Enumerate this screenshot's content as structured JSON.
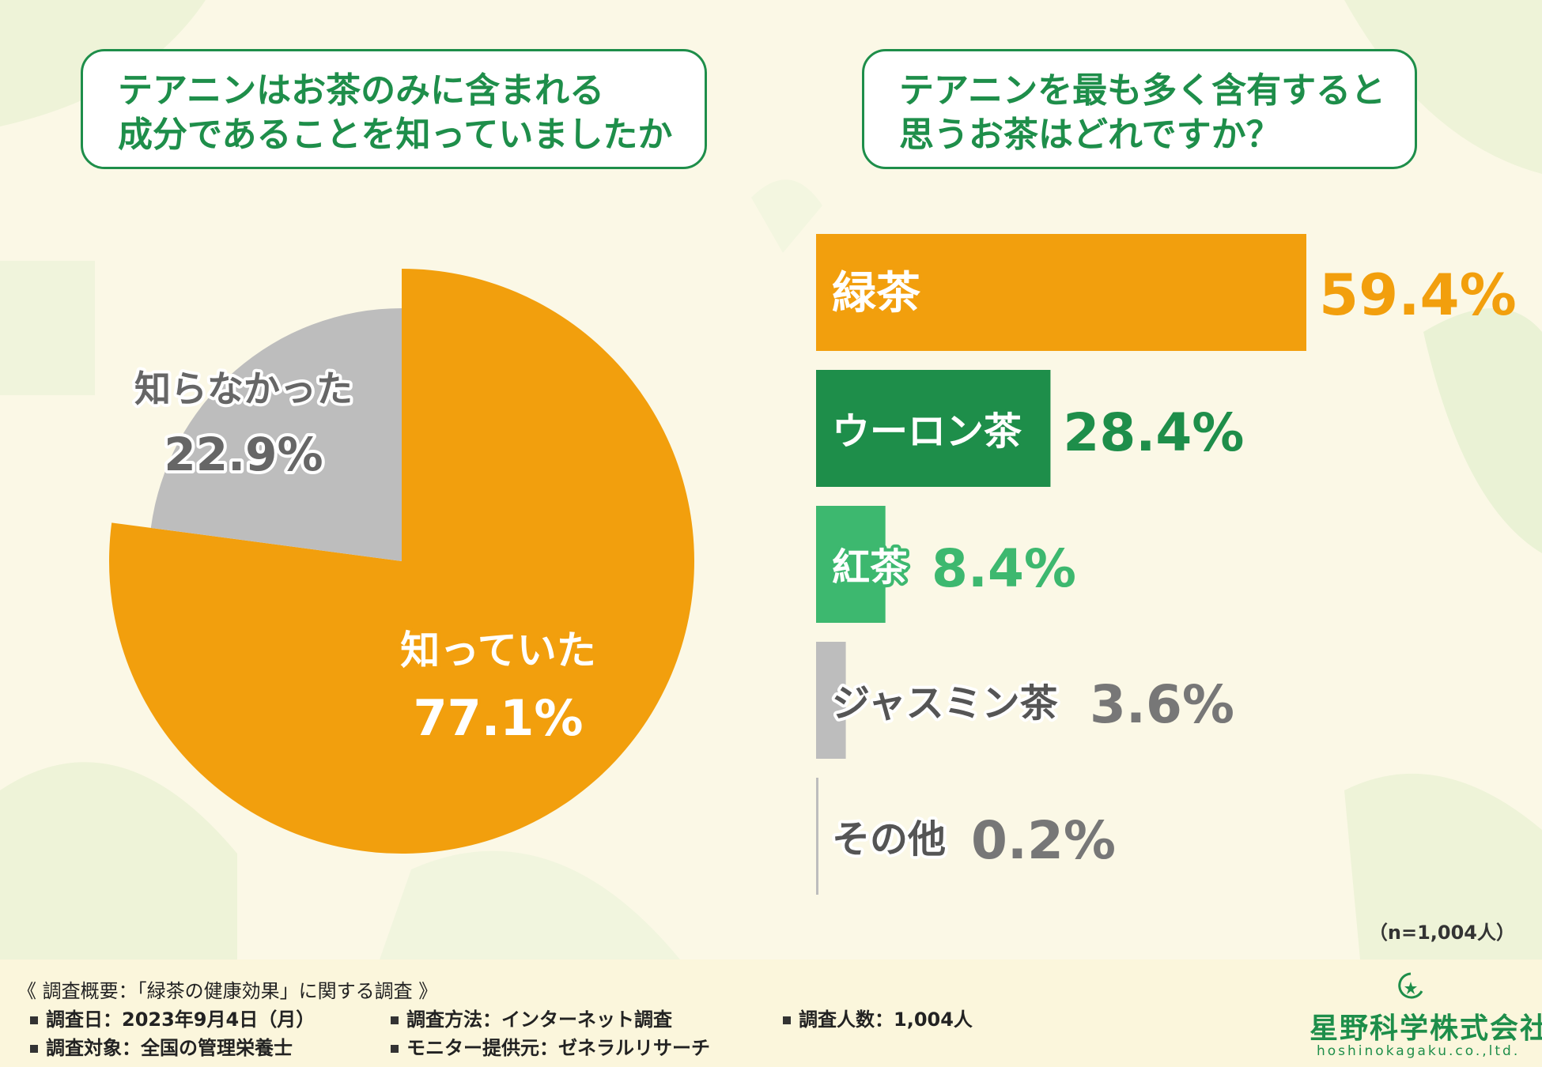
{
  "colors": {
    "green_dark": "#1e8e4a",
    "orange": "#f29f0d",
    "green_light": "#3db86f",
    "gray": "#bdbdbd",
    "gray_text": "#777777"
  },
  "questions": {
    "q1_line1": "テアニンはお茶のみに含まれる",
    "q1_line2": "成分であることを知っていましたか",
    "q2_line1": "テアニンを最も多く含有すると",
    "q2_line2": "思うお茶はどれですか？"
  },
  "chart_data": [
    {
      "type": "pie",
      "labels": [
        "知っていた",
        "知らなかった"
      ],
      "values": [
        77.1,
        22.9
      ],
      "value_labels": [
        "77.1%",
        "22.9%"
      ],
      "colors": [
        "#f29f0d",
        "#bdbdbd"
      ]
    },
    {
      "type": "bar",
      "orientation": "horizontal",
      "categories": [
        "緑茶",
        "ウーロン茶",
        "紅茶",
        "ジャスミン茶",
        "その他"
      ],
      "values": [
        59.4,
        28.4,
        8.4,
        3.6,
        0.2
      ],
      "value_labels": [
        "59.4%",
        "28.4%",
        "8.4%",
        "3.6%",
        "0.2%"
      ],
      "colors": [
        "#f29f0d",
        "#1e8e4a",
        "#3db86f",
        "#bdbdbd",
        "#bdbdbd"
      ],
      "label_colors": [
        "#f29f0d",
        "#1e8e4a",
        "#3db86f",
        "#777777",
        "#777777"
      ]
    }
  ],
  "note": "（n=1,004人）",
  "footer": {
    "title": "《 調査概要：「緑茶の健康効果」に関する調査 》",
    "date": "調査日：2023年9月4日（月）",
    "method": "調査方法：インターネット調査",
    "count": "調査人数：1,004人",
    "target": "調査対象：全国の管理栄養士",
    "provider": "モニター提供元：ゼネラルリサーチ"
  },
  "logo": {
    "name": "星野科学株式会社",
    "sub": "hoshinokagaku.co.,ltd."
  }
}
